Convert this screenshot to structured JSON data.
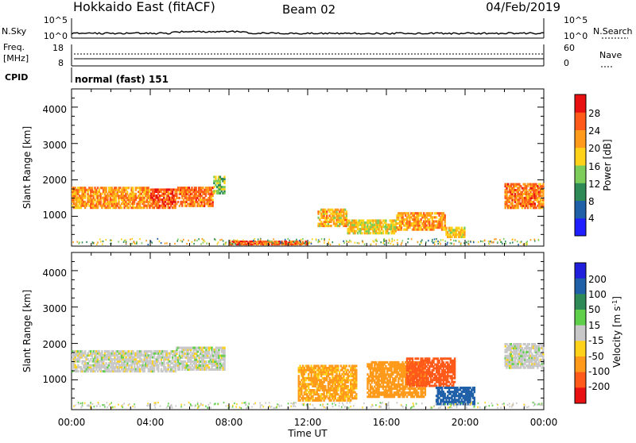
{
  "header": {
    "station": "Hokkaido East (fitACF)",
    "beam": "Beam 02",
    "date": "04/Feb/2019"
  },
  "top_panels": {
    "noise": {
      "left_label": "N.Sky",
      "right_label": "N.Search",
      "left_ticks": [
        "10^5",
        "10^0"
      ],
      "right_ticks": [
        "10^5",
        "10^0"
      ]
    },
    "freq": {
      "left_label_line1": "Freq.",
      "left_label_line2": "[MHz]",
      "left_ticks": [
        "18",
        "8"
      ],
      "right_label": "Nave",
      "right_ticks": [
        "60",
        "0"
      ]
    },
    "cpid": {
      "label": "CPID",
      "value": "normal (fast) 151"
    }
  },
  "x_axis": {
    "label": "Time UT",
    "ticks": [
      "00:00",
      "04:00",
      "08:00",
      "12:00",
      "16:00",
      "20:00",
      "00:00"
    ]
  },
  "y_axis": {
    "label": "Slant Range [km]",
    "ticks": [
      "1000",
      "2000",
      "3000",
      "4000"
    ]
  },
  "power_scale": {
    "label": "Power [dB]",
    "ticks": [
      "4",
      "8",
      "12",
      "16",
      "20",
      "24",
      "28"
    ],
    "colors": [
      "#1f1fff",
      "#2060a8",
      "#2e8b57",
      "#7ccd5a",
      "#ffd21a",
      "#ff9a1a",
      "#ff5a1a",
      "#e81010"
    ]
  },
  "velocity_scale": {
    "label": "Velocity [m s",
    "label_sup": "-1",
    "label_end": "]",
    "ticks": [
      "200",
      "100",
      "50",
      "15",
      "-15",
      "-50",
      "-100",
      "-200"
    ],
    "colors": [
      "#1f1fdc",
      "#2060a8",
      "#2e8b57",
      "#5fd04a",
      "#c8c8c8",
      "#ffd21a",
      "#ff9a1a",
      "#ff5a1a",
      "#e81010"
    ]
  },
  "chart_data": [
    {
      "type": "heatmap",
      "title": "Power",
      "xlabel": "Time UT",
      "ylabel": "Slant Range [km]",
      "xlim": [
        0,
        24
      ],
      "ylim": [
        180,
        4500
      ],
      "colorbar_label": "Power [dB]",
      "regions": [
        {
          "t0": 0.0,
          "t1": 4.0,
          "r0": 1200,
          "r1": 1800,
          "value": 22
        },
        {
          "t0": 4.0,
          "t1": 5.3,
          "r0": 1200,
          "r1": 1750,
          "value": 26
        },
        {
          "t0": 5.3,
          "t1": 7.2,
          "r0": 1250,
          "r1": 1800,
          "value": 24
        },
        {
          "t0": 7.2,
          "t1": 7.8,
          "r0": 1600,
          "r1": 2100,
          "value": 14
        },
        {
          "t0": 12.5,
          "t1": 14.0,
          "r0": 700,
          "r1": 1200,
          "value": 20
        },
        {
          "t0": 14.0,
          "t1": 16.5,
          "r0": 500,
          "r1": 900,
          "value": 18
        },
        {
          "t0": 16.5,
          "t1": 19.0,
          "r0": 600,
          "r1": 1100,
          "value": 22
        },
        {
          "t0": 19.0,
          "t1": 20.0,
          "r0": 400,
          "r1": 700,
          "value": 18
        },
        {
          "t0": 22.0,
          "t1": 24.0,
          "r0": 1200,
          "r1": 1900,
          "value": 24
        },
        {
          "t0": 8.0,
          "t1": 12.0,
          "r0": 200,
          "r1": 320,
          "value": 26
        }
      ]
    },
    {
      "type": "heatmap",
      "title": "Velocity",
      "xlabel": "Time UT",
      "ylabel": "Slant Range [km]",
      "xlim": [
        0,
        24
      ],
      "ylim": [
        180,
        4500
      ],
      "colorbar_label": "Velocity [m s-1]",
      "regions": [
        {
          "t0": 0.0,
          "t1": 5.3,
          "r0": 1200,
          "r1": 1800,
          "value": 0
        },
        {
          "t0": 5.3,
          "t1": 7.8,
          "r0": 1250,
          "r1": 1900,
          "value": 0
        },
        {
          "t0": 11.5,
          "t1": 14.5,
          "r0": 400,
          "r1": 1400,
          "value": -60
        },
        {
          "t0": 15.0,
          "t1": 18.0,
          "r0": 500,
          "r1": 1500,
          "value": -80
        },
        {
          "t0": 17.0,
          "t1": 19.5,
          "r0": 800,
          "r1": 1600,
          "value": -180
        },
        {
          "t0": 18.5,
          "t1": 20.5,
          "r0": 300,
          "r1": 800,
          "value": 120
        },
        {
          "t0": 22.0,
          "t1": 24.0,
          "r0": 1300,
          "r1": 2000,
          "value": 0
        }
      ]
    }
  ]
}
